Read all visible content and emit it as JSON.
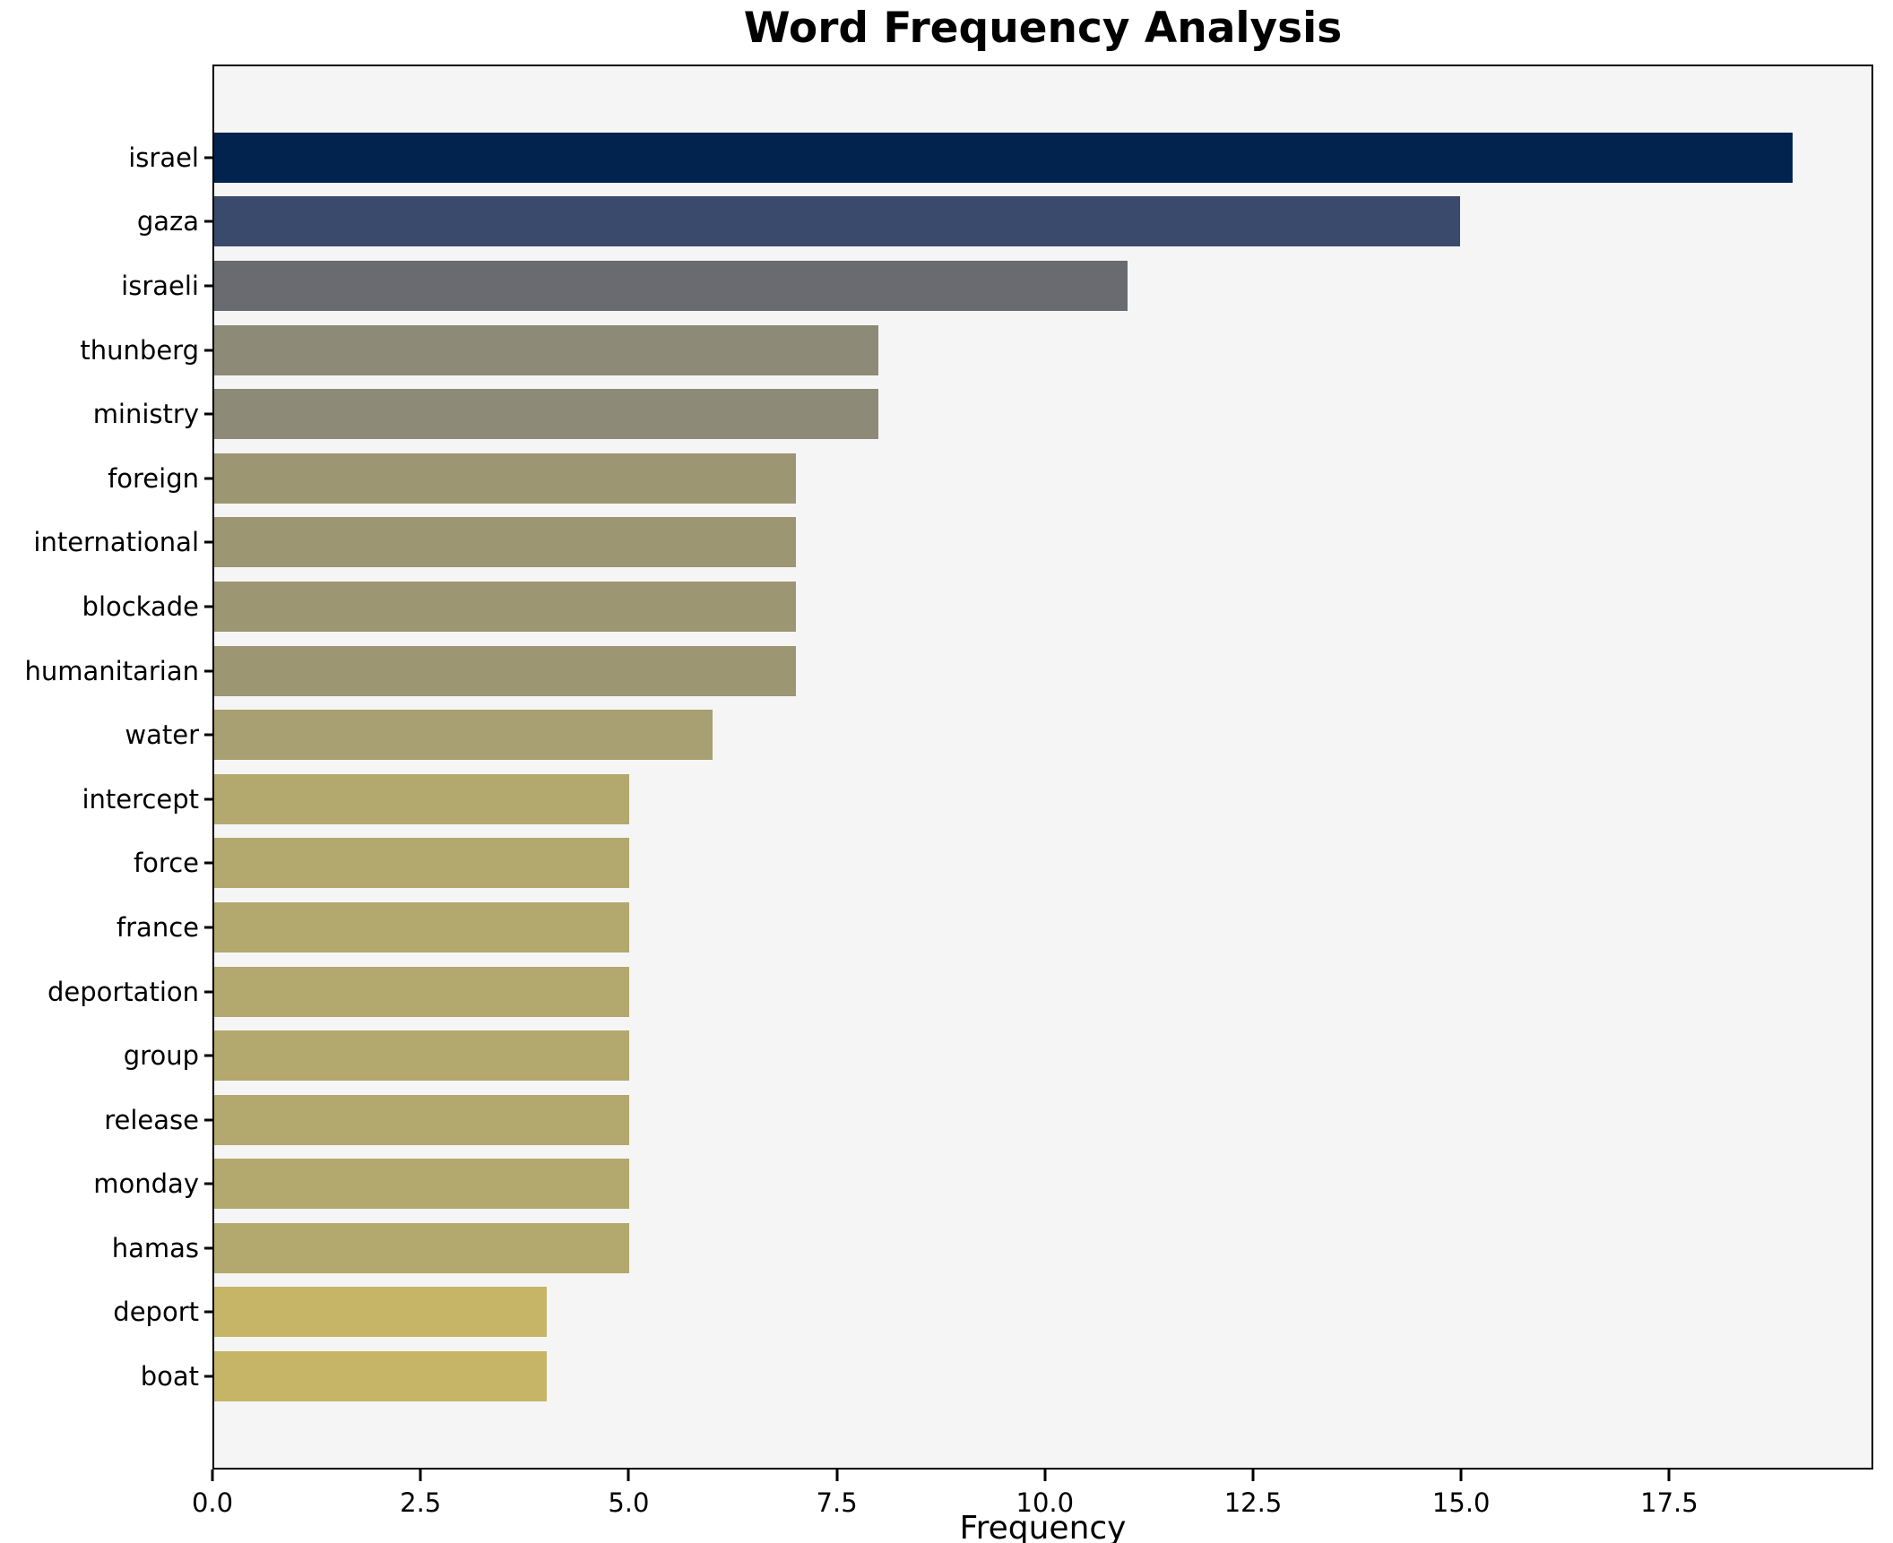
{
  "title": "Word Frequency Analysis",
  "xlabel": "Frequency",
  "colors": {
    "figure_bg": "#ffffff",
    "plot_bg": "#f5f5f6",
    "spine": "#000000",
    "text": "#000000"
  },
  "chart_data": {
    "type": "bar",
    "orientation": "horizontal",
    "title": "Word Frequency Analysis",
    "xlabel": "Frequency",
    "ylabel": "",
    "xlim": [
      0,
      19.95
    ],
    "grid": false,
    "legend": false,
    "categories": [
      "israel",
      "gaza",
      "israeli",
      "thunberg",
      "ministry",
      "foreign",
      "international",
      "blockade",
      "humanitarian",
      "water",
      "intercept",
      "force",
      "france",
      "deportation",
      "group",
      "release",
      "monday",
      "hamas",
      "deport",
      "boat"
    ],
    "values": [
      19,
      15,
      11,
      8,
      8,
      7,
      7,
      7,
      7,
      6,
      5,
      5,
      5,
      5,
      5,
      5,
      5,
      5,
      4,
      4
    ],
    "bar_colors": [
      "#02234e",
      "#3a4a6c",
      "#6a6b71",
      "#8e8a78",
      "#8e8a78",
      "#9c9673",
      "#9c9673",
      "#9c9673",
      "#9c9673",
      "#a89f72",
      "#b3a86e",
      "#b3a86e",
      "#b3a86e",
      "#b3a86e",
      "#b3a86e",
      "#b3a86e",
      "#b3a86e",
      "#b3a86e",
      "#c6b567",
      "#c6b567"
    ],
    "x_tick_values": [
      0,
      2.5,
      5,
      7.5,
      10,
      12.5,
      15,
      17.5
    ],
    "x_tick_labels": [
      "0.0",
      "2.5",
      "5.0",
      "7.5",
      "10.0",
      "12.5",
      "15.0",
      "17.5"
    ]
  }
}
